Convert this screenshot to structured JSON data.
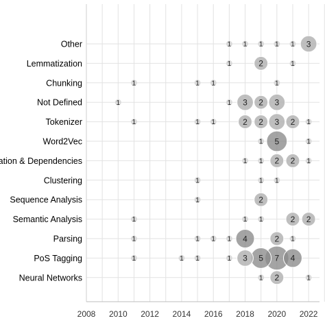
{
  "chart_data": {
    "type": "scatter",
    "title": "",
    "xlabel": "",
    "ylabel": "",
    "xlim": [
      2008,
      2023
    ],
    "x_ticks": [
      "2008",
      "2010",
      "2012",
      "2014",
      "2016",
      "2018",
      "2020",
      "2022"
    ],
    "grid": true,
    "categories": [
      "Other",
      "Lemmatization",
      "Chunking",
      "Not Defined",
      "Tokenizer",
      "Word2Vec",
      "elation & Dependencies",
      "Clustering",
      "Sequence Analysis",
      "Semantic Analysis",
      "Parsing",
      "PoS Tagging",
      "Neural Networks"
    ],
    "colors": {
      "light": "#d6d6d6",
      "medium": "#b4b4b4",
      "dark": "#8a8a8a",
      "grid": "#e2e2e2"
    },
    "points": [
      {
        "category": "Other",
        "x": 2017,
        "value": 1
      },
      {
        "category": "Other",
        "x": 2018,
        "value": 1
      },
      {
        "category": "Other",
        "x": 2019,
        "value": 1
      },
      {
        "category": "Other",
        "x": 2020,
        "value": 1
      },
      {
        "category": "Other",
        "x": 2021,
        "value": 1
      },
      {
        "category": "Other",
        "x": 2022,
        "value": 3
      },
      {
        "category": "Lemmatization",
        "x": 2017,
        "value": 1
      },
      {
        "category": "Lemmatization",
        "x": 2019,
        "value": 2
      },
      {
        "category": "Lemmatization",
        "x": 2021,
        "value": 1
      },
      {
        "category": "Chunking",
        "x": 2011,
        "value": 1
      },
      {
        "category": "Chunking",
        "x": 2015,
        "value": 1
      },
      {
        "category": "Chunking",
        "x": 2016,
        "value": 1
      },
      {
        "category": "Chunking",
        "x": 2020,
        "value": 1
      },
      {
        "category": "Not Defined",
        "x": 2010,
        "value": 1
      },
      {
        "category": "Not Defined",
        "x": 2017,
        "value": 1
      },
      {
        "category": "Not Defined",
        "x": 2018,
        "value": 3
      },
      {
        "category": "Not Defined",
        "x": 2019,
        "value": 2
      },
      {
        "category": "Not Defined",
        "x": 2020,
        "value": 3
      },
      {
        "category": "Tokenizer",
        "x": 2011,
        "value": 1
      },
      {
        "category": "Tokenizer",
        "x": 2015,
        "value": 1
      },
      {
        "category": "Tokenizer",
        "x": 2016,
        "value": 1
      },
      {
        "category": "Tokenizer",
        "x": 2018,
        "value": 2
      },
      {
        "category": "Tokenizer",
        "x": 2019,
        "value": 2
      },
      {
        "category": "Tokenizer",
        "x": 2020,
        "value": 3
      },
      {
        "category": "Tokenizer",
        "x": 2021,
        "value": 2
      },
      {
        "category": "Tokenizer",
        "x": 2022,
        "value": 1
      },
      {
        "category": "Word2Vec",
        "x": 2019,
        "value": 1
      },
      {
        "category": "Word2Vec",
        "x": 2020,
        "value": 5
      },
      {
        "category": "Word2Vec",
        "x": 2022,
        "value": 1
      },
      {
        "category": "elation & Dependencies",
        "x": 2018,
        "value": 1
      },
      {
        "category": "elation & Dependencies",
        "x": 2019,
        "value": 1
      },
      {
        "category": "elation & Dependencies",
        "x": 2020,
        "value": 2
      },
      {
        "category": "elation & Dependencies",
        "x": 2021,
        "value": 2
      },
      {
        "category": "elation & Dependencies",
        "x": 2022,
        "value": 1
      },
      {
        "category": "Clustering",
        "x": 2015,
        "value": 1
      },
      {
        "category": "Clustering",
        "x": 2019,
        "value": 1
      },
      {
        "category": "Clustering",
        "x": 2020,
        "value": 1
      },
      {
        "category": "Sequence Analysis",
        "x": 2015,
        "value": 1
      },
      {
        "category": "Sequence Analysis",
        "x": 2019,
        "value": 2
      },
      {
        "category": "Semantic Analysis",
        "x": 2011,
        "value": 1
      },
      {
        "category": "Semantic Analysis",
        "x": 2018,
        "value": 1
      },
      {
        "category": "Semantic Analysis",
        "x": 2019,
        "value": 1
      },
      {
        "category": "Semantic Analysis",
        "x": 2021,
        "value": 2
      },
      {
        "category": "Semantic Analysis",
        "x": 2022,
        "value": 2
      },
      {
        "category": "Parsing",
        "x": 2011,
        "value": 1
      },
      {
        "category": "Parsing",
        "x": 2015,
        "value": 1
      },
      {
        "category": "Parsing",
        "x": 2016,
        "value": 1
      },
      {
        "category": "Parsing",
        "x": 2017,
        "value": 1
      },
      {
        "category": "Parsing",
        "x": 2018,
        "value": 4
      },
      {
        "category": "Parsing",
        "x": 2020,
        "value": 2
      },
      {
        "category": "Parsing",
        "x": 2021,
        "value": 1
      },
      {
        "category": "PoS Tagging",
        "x": 2011,
        "value": 1
      },
      {
        "category": "PoS Tagging",
        "x": 2014,
        "value": 1
      },
      {
        "category": "PoS Tagging",
        "x": 2015,
        "value": 1
      },
      {
        "category": "PoS Tagging",
        "x": 2017,
        "value": 1
      },
      {
        "category": "PoS Tagging",
        "x": 2018,
        "value": 3
      },
      {
        "category": "PoS Tagging",
        "x": 2019,
        "value": 5
      },
      {
        "category": "PoS Tagging",
        "x": 2020,
        "value": 7
      },
      {
        "category": "PoS Tagging",
        "x": 2021,
        "value": 4
      },
      {
        "category": "Neural Networks",
        "x": 2019,
        "value": 1
      },
      {
        "category": "Neural Networks",
        "x": 2020,
        "value": 2
      },
      {
        "category": "Neural Networks",
        "x": 2022,
        "value": 1
      }
    ]
  }
}
